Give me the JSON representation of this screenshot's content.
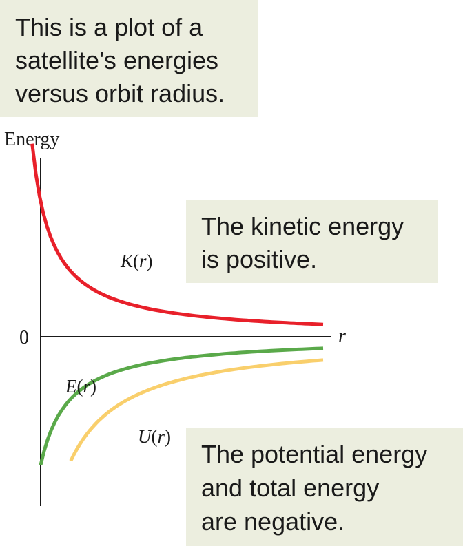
{
  "chart_data": {
    "type": "line",
    "title": "",
    "ylabel": "Energy",
    "xlabel": "r",
    "y_tick_labels": [
      "0"
    ],
    "grid": false,
    "legend": "none (curves labeled directly)",
    "x_range": [
      0.3,
      3.3
    ],
    "y_range": [
      -1.1,
      1.1
    ],
    "series": [
      {
        "name": "K(r)",
        "name_parts": [
          "K",
          "(",
          "r",
          ")"
        ],
        "color": "#e8202a",
        "relation": "K = +k/r",
        "k": 0.25,
        "x_start": 0.21,
        "x_end": 3.3
      },
      {
        "name": "E(r)",
        "name_parts": [
          "E",
          "(",
          "r",
          ")"
        ],
        "color": "#5aa94a",
        "relation": "E = -k/r",
        "k": 0.25,
        "x_start": 0.3,
        "x_end": 3.3
      },
      {
        "name": "U(r)",
        "name_parts": [
          "U",
          "(",
          "r",
          ")"
        ],
        "color": "#f9cf6c",
        "relation": "U = -2k/r",
        "k": 0.5,
        "x_start": 0.62,
        "x_end": 3.3
      }
    ]
  },
  "callouts": {
    "top": [
      "This is a plot of a",
      "satellite's energies",
      "versus orbit radius."
    ],
    "kinetic": [
      "The kinetic energy",
      "is positive."
    ],
    "potential": [
      "The potential energy",
      "and total energy",
      "are negative."
    ]
  }
}
